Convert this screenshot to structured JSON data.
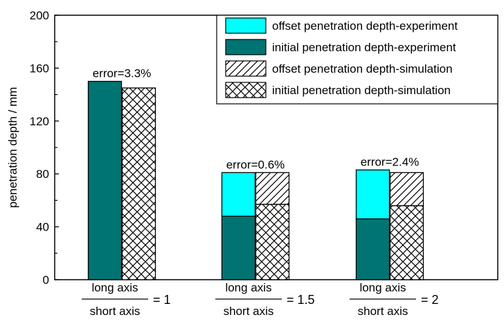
{
  "chart_data": {
    "type": "bar",
    "ylabel": "penetration depth / mm",
    "xlabel": "",
    "ylim": [
      0,
      200
    ],
    "yticks": [
      0,
      40,
      80,
      120,
      160,
      200
    ],
    "grid": false,
    "legend_position": "top-right",
    "categories": [
      {
        "numerator": "long axis",
        "denominator": "short axis",
        "value_text": "= 1"
      },
      {
        "numerator": "long axis",
        "denominator": "short axis",
        "value_text": "= 1.5"
      },
      {
        "numerator": "long axis",
        "denominator": "short axis",
        "value_text": "= 2"
      }
    ],
    "series": [
      {
        "name": "offset penetration depth-experiment",
        "pattern": "solid-cyan",
        "color": "#00ffff",
        "values": [
          0,
          33,
          37
        ],
        "stack": "experiment"
      },
      {
        "name": "initial penetration depth-experiment",
        "pattern": "solid-teal",
        "color": "#007373",
        "values": [
          150,
          48,
          46
        ],
        "stack": "experiment"
      },
      {
        "name": "offset penetration depth-simulation",
        "pattern": "diagonal-hatch",
        "color": "#000000",
        "values": [
          0,
          24,
          25
        ],
        "stack": "simulation"
      },
      {
        "name": "initial penetration depth-simulation",
        "pattern": "cross-hatch",
        "color": "#000000",
        "values": [
          145,
          57,
          56
        ],
        "stack": "simulation"
      }
    ],
    "annotations": [
      "error=3.3%",
      "error=0.6%",
      "error=2.4%"
    ]
  }
}
